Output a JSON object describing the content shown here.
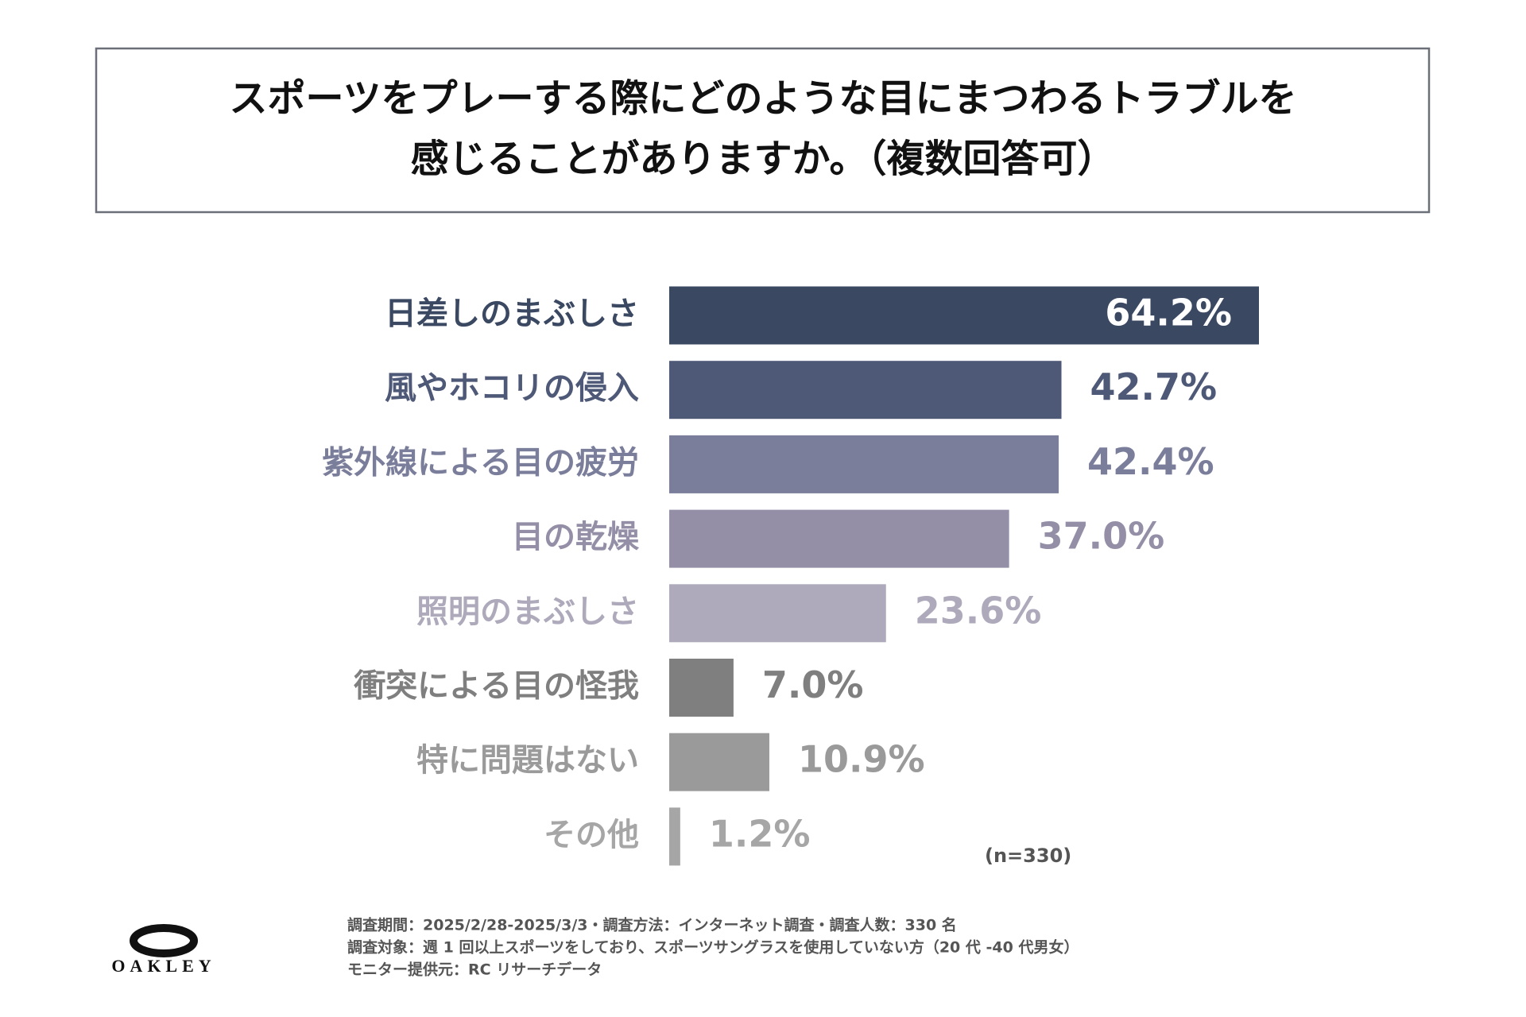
{
  "chart_data": {
    "type": "hbar",
    "title": [
      "スポーツをプレーする際にどのような目にまつわるトラブルを",
      "感じることがありますか。（複数回答可）"
    ],
    "categories": [
      "日差しのまぶしさ",
      "風やホコリの侵入",
      "紫外線による目の疲労",
      "目の乾燥",
      "照明のまぶしさ",
      "衝突による目の怪我",
      "特に問題はない",
      "その他"
    ],
    "values": [
      64.2,
      42.7,
      42.4,
      37.0,
      23.6,
      7.0,
      10.9,
      1.2
    ],
    "value_labels": [
      "64.2%",
      "42.7%",
      "42.4%",
      "37.0%",
      "23.6%",
      "7.0%",
      "10.9%",
      "1.2%"
    ],
    "colors": [
      "#3b4862",
      "#4e5877",
      "#7a7e9b",
      "#948fa7",
      "#aeaabb",
      "#7f7f7f",
      "#9a9a9a",
      "#a6a6a6"
    ],
    "note": "(n=330)",
    "footnotes": [
      "調査期間：2025/2/28-2025/3/3・調査方法：インターネット調査・調査人数：330 名",
      "調査対象：週 1 回以上スポーツをしており、スポーツサングラスを使用していない方（20 代 -40 代男女）",
      "モニター提供元：RC リサーチデータ"
    ],
    "logo": "OAKLEY"
  }
}
